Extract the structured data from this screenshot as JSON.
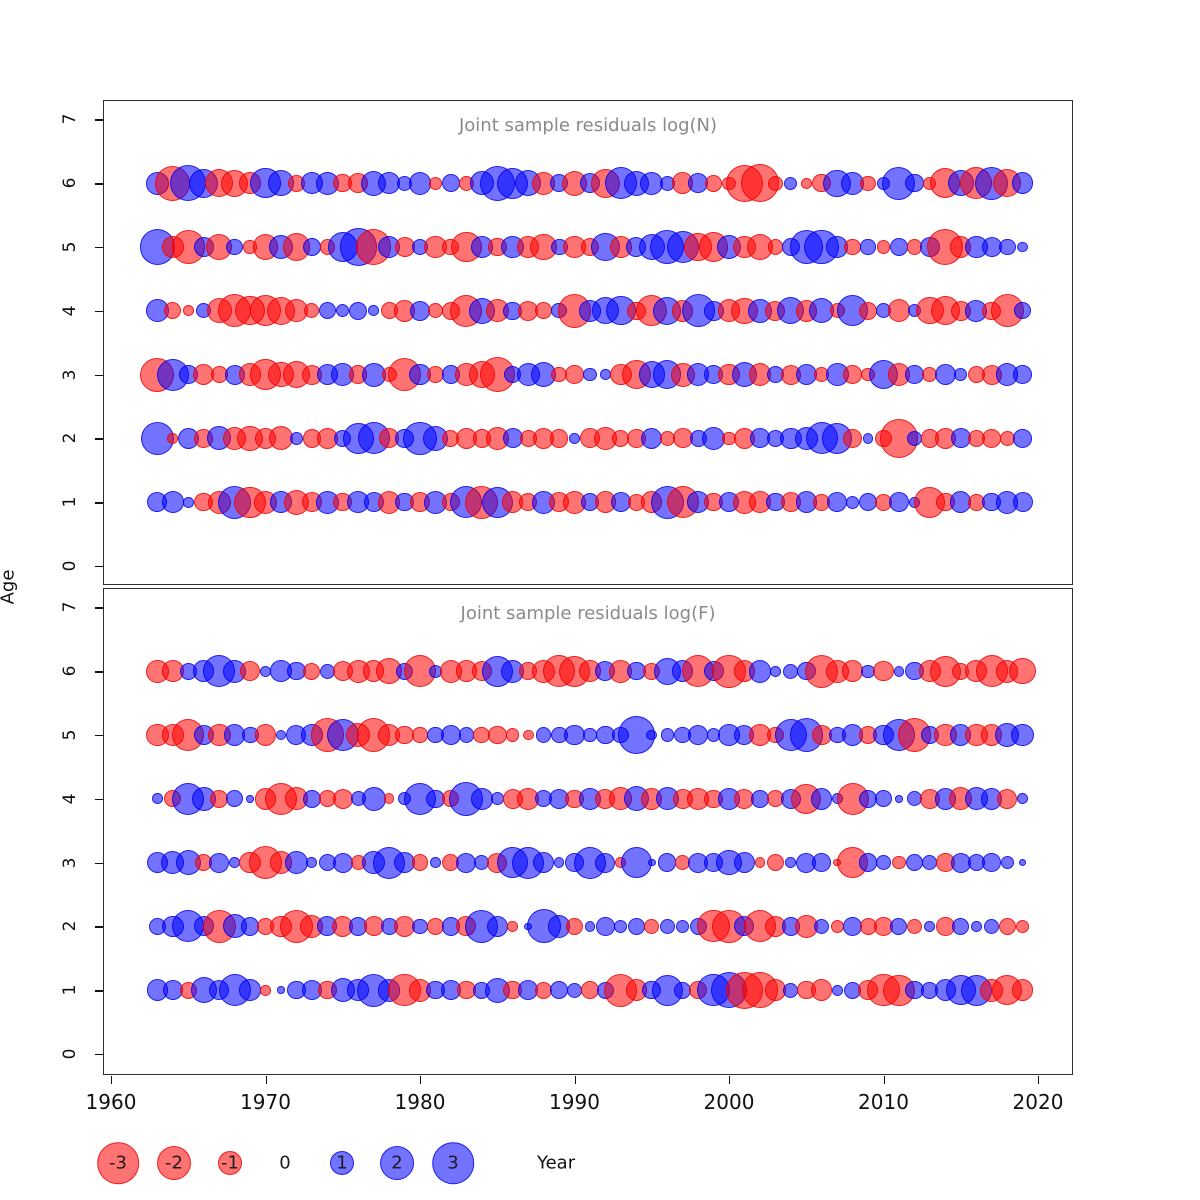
{
  "figure": {
    "ylab": "Age",
    "xlab": "Year",
    "x_ticks": [
      1960,
      1970,
      1980,
      1990,
      2000,
      2010,
      2020
    ],
    "y_ticks": [
      0,
      1,
      2,
      3,
      4,
      5,
      6,
      7
    ],
    "colors": {
      "negative_fill": "rgba(255,0,0,0.55)",
      "positive_fill": "rgba(0,0,255,0.55)",
      "title_gray": "#8a8a8a",
      "axis_black": "#111111"
    }
  },
  "legend": {
    "items": [
      {
        "label": "-3",
        "value": -3
      },
      {
        "label": "-2",
        "value": -2
      },
      {
        "label": "-1",
        "value": -1
      },
      {
        "label": "0",
        "value": 0
      },
      {
        "label": "1",
        "value": 1
      },
      {
        "label": "2",
        "value": 2
      },
      {
        "label": "3",
        "value": 3
      }
    ],
    "year_label": "Year"
  },
  "chart_data": [
    {
      "type": "bubble",
      "title": "Joint sample residuals log(N)",
      "xlabel": "Year",
      "ylabel": "Age",
      "xlim": [
        1960,
        2020
      ],
      "ylim": [
        0,
        7
      ],
      "x": [
        1963,
        1964,
        1965,
        1966,
        1967,
        1968,
        1969,
        1970,
        1971,
        1972,
        1973,
        1974,
        1975,
        1976,
        1977,
        1978,
        1979,
        1980,
        1981,
        1982,
        1983,
        1984,
        1985,
        1986,
        1987,
        1988,
        1989,
        1990,
        1991,
        1992,
        1993,
        1994,
        1995,
        1996,
        1997,
        1998,
        1999,
        2000,
        2001,
        2002,
        2003,
        2004,
        2005,
        2006,
        2007,
        2008,
        2009,
        2010,
        2011,
        2012,
        2013,
        2014,
        2015,
        2016,
        2017,
        2018,
        2019
      ],
      "series": [
        {
          "age": 6,
          "values": [
            0.9,
            -2.1,
            2.3,
            1.5,
            -1.4,
            -1.3,
            -0.8,
            1.6,
            1.2,
            -0.5,
            0.8,
            0.9,
            -0.6,
            -0.7,
            1.1,
            0.8,
            0.4,
            0.9,
            -0.3,
            0.6,
            -0.4,
            1.0,
            2.1,
            1.7,
            1.2,
            -0.9,
            0.6,
            -1.1,
            0.7,
            -1.5,
            1.8,
            1.1,
            0.9,
            0.4,
            -0.8,
            0.7,
            -0.5,
            -0.3,
            -2.4,
            -2.5,
            -0.4,
            0.3,
            -0.2,
            -0.6,
            1.3,
            0.9,
            -0.4,
            0.3,
            1.9,
            0.6,
            -0.3,
            -1.6,
            1.2,
            -1.8,
            1.9,
            -1.4,
            0.8
          ]
        },
        {
          "age": 5,
          "values": [
            2.2,
            -0.8,
            -1.9,
            0.7,
            -1.2,
            0.5,
            -0.3,
            -1.1,
            1.0,
            -1.3,
            0.6,
            -0.4,
            1.6,
            2.4,
            -2.2,
            0.9,
            -0.7,
            0.5,
            -0.9,
            -0.5,
            -1.6,
            0.8,
            -0.6,
            0.9,
            -0.8,
            -1.2,
            0.5,
            -0.9,
            -0.6,
            1.4,
            -0.8,
            0.7,
            1.2,
            2.0,
            1.8,
            -1.3,
            -1.5,
            1.0,
            -0.9,
            -1.2,
            -0.4,
            0.6,
            1.9,
            2.1,
            0.8,
            -0.5,
            0.4,
            -0.3,
            0.6,
            -0.4,
            0.7,
            -2.3,
            -0.8,
            0.9,
            0.7,
            0.5,
            0.2
          ]
        },
        {
          "age": 4,
          "values": [
            0.9,
            -0.5,
            -0.2,
            0.4,
            -1.1,
            -1.9,
            -1.5,
            -1.7,
            -1.4,
            -0.9,
            -0.4,
            0.5,
            0.3,
            0.6,
            0.2,
            -0.5,
            -0.8,
            0.7,
            -0.4,
            -0.6,
            -1.8,
            1.2,
            -0.9,
            0.6,
            -0.7,
            -0.5,
            0.4,
            -2.0,
            0.8,
            1.3,
            1.5,
            -0.6,
            -1.7,
            1.4,
            -0.8,
            1.9,
            0.7,
            -0.9,
            -1.2,
            1.0,
            -0.7,
            1.3,
            -0.8,
            1.1,
            -0.4,
            1.7,
            -0.6,
            0.4,
            -0.9,
            0.3,
            -1.3,
            -1.5,
            -0.7,
            0.8,
            -0.6,
            -1.9,
            0.5
          ]
        },
        {
          "age": 3,
          "values": [
            -2.0,
            1.8,
            0.6,
            -0.8,
            -0.5,
            0.7,
            -0.9,
            -1.6,
            -1.1,
            -1.3,
            -0.7,
            0.8,
            0.9,
            -0.6,
            1.0,
            -0.4,
            -1.9,
            0.8,
            -0.5,
            0.6,
            -0.9,
            -1.2,
            -2.1,
            0.5,
            0.9,
            1.1,
            -0.4,
            -0.6,
            0.3,
            0.2,
            -0.8,
            -1.5,
            1.2,
            1.4,
            -1.0,
            0.9,
            0.6,
            -0.8,
            1.1,
            -0.9,
            0.5,
            -0.7,
            0.8,
            -0.4,
            0.9,
            -0.6,
            -0.3,
            1.5,
            -0.9,
            0.6,
            -0.4,
            0.8,
            0.3,
            -0.5,
            -0.7,
            0.9,
            0.6
          ]
        },
        {
          "age": 2,
          "values": [
            1.9,
            -0.2,
            0.8,
            -0.6,
            1.0,
            -0.9,
            -1.1,
            -0.8,
            -1.0,
            0.3,
            -0.6,
            -0.8,
            0.5,
            1.7,
            1.8,
            -0.7,
            0.6,
            1.9,
            1.1,
            -0.5,
            -0.8,
            -0.6,
            -0.9,
            0.7,
            -0.5,
            -0.8,
            -0.6,
            0.2,
            -0.7,
            -0.9,
            -0.5,
            -0.6,
            0.8,
            -0.4,
            -0.7,
            0.5,
            0.9,
            -0.3,
            -0.8,
            0.7,
            0.5,
            0.8,
            0.9,
            1.8,
            1.6,
            -0.6,
            0.2,
            -0.5,
            -2.6,
            0.4,
            -0.6,
            -0.8,
            0.7,
            -0.5,
            -0.6,
            -0.4,
            0.6
          ]
        },
        {
          "age": 1,
          "values": [
            0.7,
            0.8,
            0.2,
            -0.6,
            -0.9,
            1.9,
            -1.7,
            -0.9,
            0.8,
            -1.1,
            -0.7,
            0.9,
            -0.6,
            0.8,
            0.7,
            -0.9,
            0.6,
            -0.7,
            0.9,
            -0.6,
            1.8,
            -1.9,
            1.7,
            -0.8,
            -0.6,
            0.9,
            -0.7,
            -0.9,
            0.6,
            -0.8,
            0.7,
            -0.5,
            -0.8,
            1.9,
            -1.8,
            0.8,
            -0.6,
            0.7,
            -0.9,
            -0.8,
            0.6,
            -0.7,
            0.8,
            -0.5,
            0.7,
            0.3,
            0.6,
            -0.5,
            0.7,
            0.2,
            -1.7,
            -0.6,
            0.8,
            -0.5,
            0.6,
            0.9,
            0.7
          ]
        }
      ]
    },
    {
      "type": "bubble",
      "title": "Joint sample residuals log(F)",
      "xlabel": "Year",
      "ylabel": "Age",
      "xlim": [
        1960,
        2020
      ],
      "ylim": [
        0,
        7
      ],
      "x": [
        1963,
        1964,
        1965,
        1966,
        1967,
        1968,
        1969,
        1970,
        1971,
        1972,
        1973,
        1974,
        1975,
        1976,
        1977,
        1978,
        1979,
        1980,
        1981,
        1982,
        1983,
        1984,
        1985,
        1986,
        1987,
        1988,
        1989,
        1990,
        1991,
        1992,
        1993,
        1994,
        1995,
        1996,
        1997,
        1998,
        1999,
        2000,
        2001,
        2002,
        2003,
        2004,
        2005,
        2006,
        2007,
        2008,
        2009,
        2010,
        2011,
        2012,
        2013,
        2014,
        2015,
        2016,
        2017,
        2018,
        2019
      ],
      "series": [
        {
          "age": 6,
          "values": [
            -0.9,
            -0.8,
            0.5,
            0.8,
            1.8,
            0.9,
            -0.7,
            0.2,
            0.8,
            0.6,
            -0.5,
            0.4,
            -0.7,
            -0.9,
            -0.8,
            -1.2,
            0.5,
            -1.8,
            0.3,
            -0.9,
            -0.8,
            -0.7,
            1.7,
            0.9,
            -0.6,
            -0.9,
            -1.8,
            -1.7,
            -0.8,
            0.7,
            -0.9,
            0.6,
            -0.5,
            1.3,
            0.8,
            -1.8,
            0.7,
            -1.9,
            -0.8,
            0.9,
            0.2,
            0.4,
            0.6,
            -1.9,
            -0.9,
            -0.8,
            0.3,
            -0.7,
            0.2,
            0.6,
            -0.8,
            -1.7,
            -0.5,
            -0.8,
            -1.8,
            -0.9,
            -1.2
          ]
        },
        {
          "age": 5,
          "values": [
            -0.9,
            -0.8,
            -1.8,
            0.7,
            -0.9,
            0.8,
            0.5,
            -0.8,
            0.2,
            0.7,
            0.8,
            -1.9,
            1.8,
            -1.0,
            -1.9,
            -0.9,
            -0.6,
            -0.4,
            0.5,
            0.7,
            0.4,
            -0.5,
            -0.6,
            -0.3,
            -0.2,
            0.4,
            0.5,
            0.7,
            0.3,
            0.6,
            0.5,
            2.4,
            0.2,
            0.3,
            0.5,
            0.7,
            0.3,
            0.8,
            0.7,
            -0.8,
            -0.5,
            1.8,
            1.9,
            -0.7,
            0.5,
            0.8,
            -0.6,
            0.7,
            1.8,
            -1.9,
            0.6,
            -0.9,
            0.8,
            -0.9,
            -0.8,
            1.0,
            0.9
          ]
        },
        {
          "age": 4,
          "values": [
            0.2,
            -0.5,
            1.8,
            1.0,
            -0.6,
            0.5,
            0.1,
            -0.8,
            -1.8,
            -0.9,
            0.6,
            -0.5,
            -0.7,
            0.4,
            1.0,
            -0.2,
            0.3,
            1.8,
            0.6,
            -0.5,
            2.0,
            0.8,
            0.3,
            -0.7,
            -0.8,
            0.5,
            0.7,
            -0.6,
            0.8,
            -0.7,
            -0.9,
            1.1,
            -0.8,
            0.9,
            -0.7,
            -0.8,
            -0.6,
            0.8,
            -0.7,
            0.6,
            -0.5,
            0.7,
            -1.6,
            0.8,
            0.2,
            -1.8,
            0.6,
            0.5,
            0.1,
            0.4,
            -0.7,
            0.8,
            -0.9,
            0.9,
            0.8,
            -0.7,
            0.2
          ]
        },
        {
          "age": 3,
          "values": [
            0.8,
            0.9,
            1.1,
            -0.5,
            0.7,
            0.2,
            -0.8,
            -1.9,
            -0.9,
            0.9,
            0.2,
            0.5,
            0.7,
            -0.4,
            0.9,
            1.8,
            0.8,
            -0.5,
            0.2,
            -0.5,
            0.7,
            0.4,
            -0.7,
            1.7,
            1.8,
            0.8,
            0.2,
            0.6,
            1.8,
            0.7,
            -0.2,
            1.7,
            0.1,
            0.6,
            -0.4,
            0.7,
            0.6,
            1.1,
            0.8,
            -0.2,
            -0.5,
            0.2,
            0.7,
            0.6,
            -0.1,
            -1.7,
            0.6,
            0.4,
            -0.3,
            0.5,
            0.4,
            -0.6,
            0.7,
            0.5,
            0.6,
            0.3,
            0.1
          ]
        },
        {
          "age": 2,
          "values": [
            0.5,
            0.8,
            1.8,
            0.7,
            -1.9,
            1.0,
            0.6,
            -0.5,
            -0.8,
            -1.9,
            -0.9,
            0.7,
            -0.8,
            0.6,
            -0.7,
            0.5,
            -0.8,
            0.4,
            -0.5,
            0.6,
            -0.7,
            1.9,
            0.8,
            -0.2,
            0.1,
            2.0,
            0.9,
            -0.5,
            0.2,
            0.6,
            0.3,
            0.5,
            -0.4,
            0.4,
            0.3,
            0.5,
            -1.8,
            -1.9,
            0.7,
            -1.8,
            -0.8,
            0.6,
            -0.9,
            0.4,
            -0.3,
            0.6,
            -0.5,
            -0.6,
            0.5,
            -0.4,
            0.2,
            -0.6,
            0.5,
            0.2,
            0.4,
            -0.5,
            -0.3
          ]
        },
        {
          "age": 1,
          "values": [
            0.8,
            0.7,
            -0.5,
            1.2,
            0.7,
            1.8,
            0.8,
            -0.2,
            0.1,
            0.6,
            0.7,
            -0.6,
            1.0,
            0.8,
            1.9,
            0.9,
            -1.8,
            -0.9,
            0.6,
            0.7,
            -0.6,
            0.5,
            1.1,
            -0.6,
            0.7,
            -0.5,
            0.6,
            0.4,
            -0.6,
            0.5,
            -1.9,
            -0.8,
            0.6,
            1.7,
            0.5,
            -0.6,
            1.8,
            2.3,
            -2.4,
            -2.2,
            -0.8,
            0.4,
            -0.6,
            -0.8,
            0.2,
            0.5,
            -0.7,
            -1.8,
            -1.7,
            0.6,
            0.5,
            0.8,
            1.6,
            1.7,
            -0.9,
            -1.6,
            -0.8
          ]
        }
      ]
    }
  ]
}
